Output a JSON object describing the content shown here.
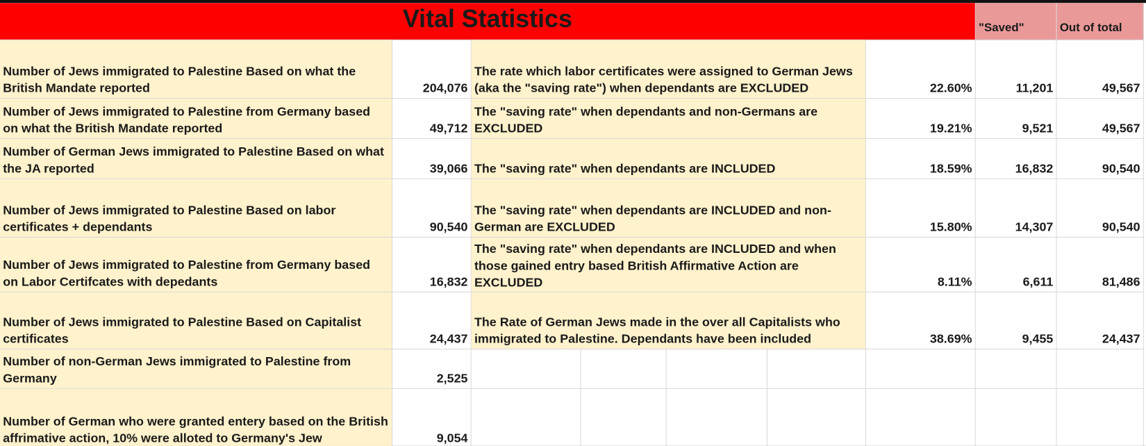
{
  "header": {
    "title": "Vital Statistics",
    "saved_label": "\"Saved\"",
    "total_label": "Out of total"
  },
  "table": {
    "rows": [
      [
        "Number of Jews immigrated to Palestine Based on what the British Mandate reported",
        "204,076",
        "The rate which labor certificates were assigned to German Jews (aka the \"saving rate\") when dependants are EXCLUDED",
        "22.60%",
        "11,201",
        "49,567"
      ],
      [
        "Number of Jews immigrated to Palestine from Germany based on what the British Mandate reported",
        "49,712",
        "The \"saving rate\" when dependants and non-Germans are EXCLUDED",
        "19.21%",
        "9,521",
        "49,567"
      ],
      [
        "Number of German Jews immigrated to Palestine Based on what the JA reported",
        "39,066",
        "The \"saving rate\" when dependants are INCLUDED",
        "18.59%",
        "16,832",
        "90,540"
      ],
      [
        "Number of Jews immigrated to Palestine Based on labor certificates + dependants",
        "90,540",
        "The \"saving rate\" when dependants are INCLUDED and non-German are EXCLUDED",
        "15.80%",
        "14,307",
        "90,540"
      ],
      [
        "Number of Jews immigrated to Palestine from Germany based on Labor Certifcates with depedants",
        "16,832",
        "The \"saving rate\" when dependants are INCLUDED and when those gained entry based British Affirmative Action are EXCLUDED",
        "8.11%",
        "6,611",
        "81,486"
      ],
      [
        "Number of Jews immigrated to Palestine Based on Capitalist certificates",
        "24,437",
        "The Rate of German Jews made in the over all Capitalists who immigrated to Palestine. Dependants have been included",
        "38.69%",
        "9,455",
        "24,437"
      ],
      [
        "Number of non-German Jews immigrated to Palestine from Germany",
        "2,525"
      ],
      [
        "Number of German who were granted entery based on the British affrimative action, 10% were alloted to Germany's Jew",
        "9,054"
      ]
    ]
  }
}
